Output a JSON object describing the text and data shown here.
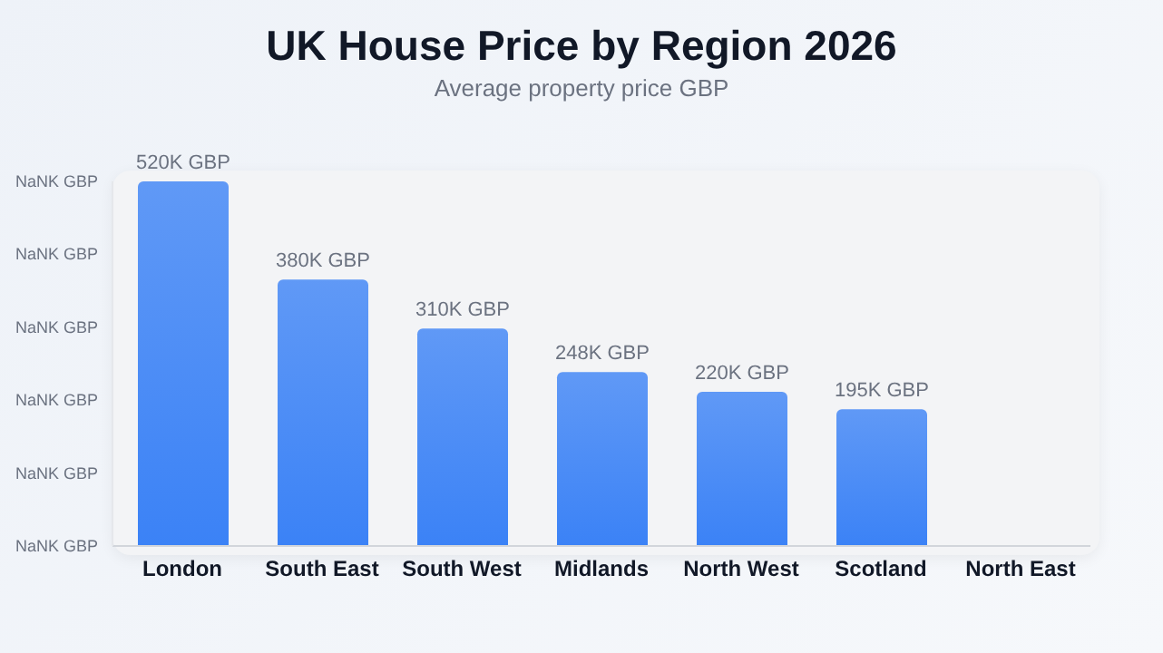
{
  "chart_data": {
    "type": "bar",
    "title": "UK House Price by Region 2026",
    "subtitle": "Average property price GBP",
    "categories": [
      "London",
      "South East",
      "South West",
      "Midlands",
      "North West",
      "Scotland",
      "North East"
    ],
    "values": [
      520,
      380,
      310,
      248,
      220,
      195,
      null
    ],
    "value_labels": [
      "520K GBP",
      "380K GBP",
      "310K GBP",
      "248K GBP",
      "220K GBP",
      "195K GBP",
      null
    ],
    "color": "#3b82f6",
    "annotations": [
      "NaNK GBP",
      "NaNK GBP",
      "NaNK GBP",
      "NaNK GBP",
      "NaNK GBP",
      "NaNK GBP"
    ]
  }
}
